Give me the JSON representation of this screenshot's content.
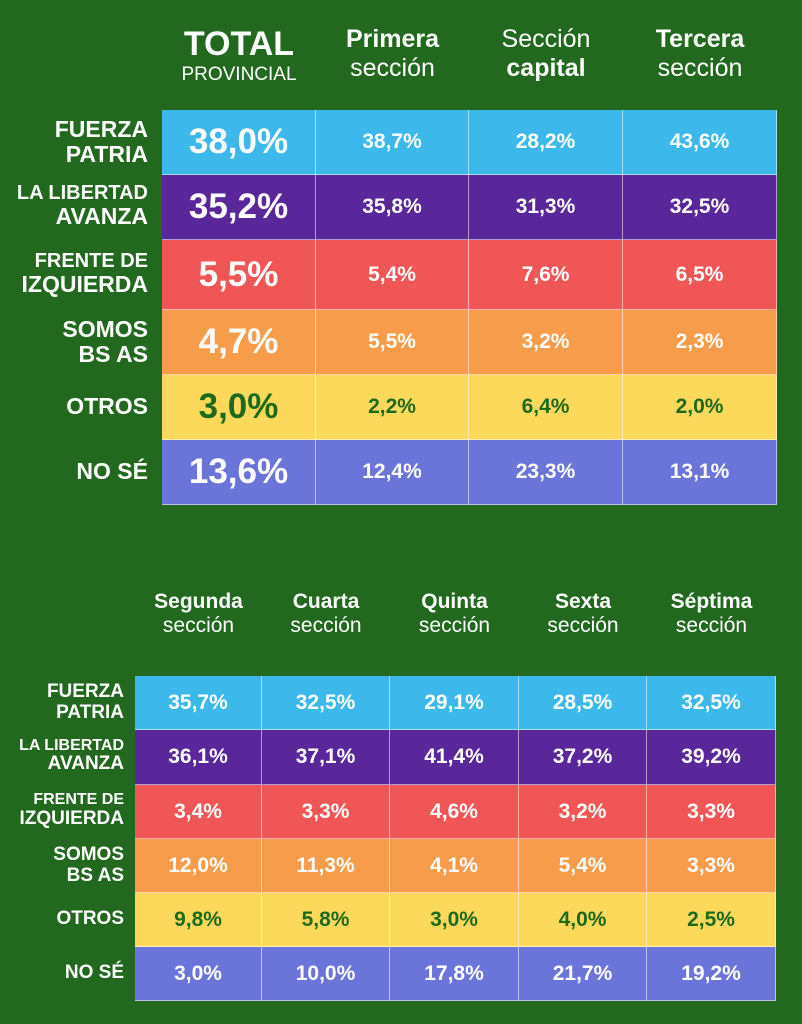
{
  "colors": {
    "background": "#22691f",
    "fuerza_patria": "#3db8ea",
    "la_libertad_avanza": "#5a279a",
    "frente_de_izquierda": "#f05656",
    "somos_bs_as": "#f79c4a",
    "otros": "#fcd95a",
    "no_se": "#6b74d8",
    "otros_text": "#1f6a1a"
  },
  "chart_data": [
    {
      "type": "table",
      "columns": [
        {
          "line1": "TOTAL",
          "line2": "PROVINCIAL"
        },
        {
          "line1": "Primera",
          "line2": "sección"
        },
        {
          "line1": "Sección",
          "line2": "capital"
        },
        {
          "line1": "Tercera",
          "line2": "sección"
        }
      ],
      "rows": [
        {
          "label1": "FUERZA",
          "label2": "PATRIA",
          "values": [
            "38,0%",
            "38,7%",
            "28,2%",
            "43,6%"
          ]
        },
        {
          "label1": "LA LIBERTAD",
          "label2": "AVANZA",
          "values": [
            "35,2%",
            "35,8%",
            "31,3%",
            "32,5%"
          ]
        },
        {
          "label1": "FRENTE DE",
          "label2": "IZQUIERDA",
          "values": [
            "5,5%",
            "5,4%",
            "7,6%",
            "6,5%"
          ]
        },
        {
          "label1": "SOMOS",
          "label2": "BS AS",
          "values": [
            "4,7%",
            "5,5%",
            "3,2%",
            "2,3%"
          ]
        },
        {
          "label1": "OTROS",
          "label2": "",
          "values": [
            "3,0%",
            "2,2%",
            "6,4%",
            "2,0%"
          ]
        },
        {
          "label1": "NO SÉ",
          "label2": "",
          "values": [
            "13,6%",
            "12,4%",
            "23,3%",
            "13,1%"
          ]
        }
      ]
    },
    {
      "type": "table",
      "columns": [
        {
          "line1": "Segunda",
          "line2": "sección"
        },
        {
          "line1": "Cuarta",
          "line2": "sección"
        },
        {
          "line1": "Quinta",
          "line2": "sección"
        },
        {
          "line1": "Sexta",
          "line2": "sección"
        },
        {
          "line1": "Séptima",
          "line2": "sección"
        }
      ],
      "rows": [
        {
          "label1": "FUERZA",
          "label2": "PATRIA",
          "values": [
            "35,7%",
            "32,5%",
            "29,1%",
            "28,5%",
            "32,5%"
          ]
        },
        {
          "label1": "LA LIBERTAD",
          "label2": "AVANZA",
          "values": [
            "36,1%",
            "37,1%",
            "41,4%",
            "37,2%",
            "39,2%"
          ]
        },
        {
          "label1": "FRENTE DE",
          "label2": "IZQUIERDA",
          "values": [
            "3,4%",
            "3,3%",
            "4,6%",
            "3,2%",
            "3,3%"
          ]
        },
        {
          "label1": "SOMOS",
          "label2": "BS AS",
          "values": [
            "12,0%",
            "11,3%",
            "4,1%",
            "5,4%",
            "3,3%"
          ]
        },
        {
          "label1": "OTROS",
          "label2": "",
          "values": [
            "9,8%",
            "5,8%",
            "3,0%",
            "4,0%",
            "2,5%"
          ]
        },
        {
          "label1": "NO SÉ",
          "label2": "",
          "values": [
            "3,0%",
            "10,0%",
            "17,8%",
            "21,7%",
            "19,2%"
          ]
        }
      ]
    }
  ]
}
